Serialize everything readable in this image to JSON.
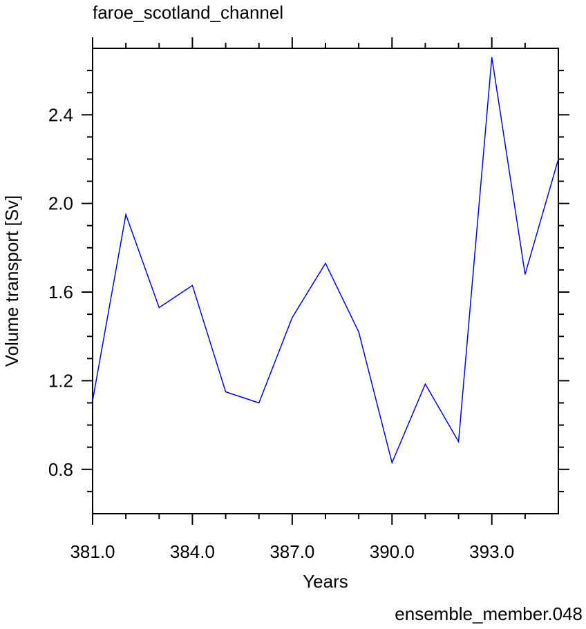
{
  "chart_data": {
    "type": "line",
    "title": "faroe_scotland_channel",
    "x_label": "Years",
    "y_label": "Volume transport [Sv]",
    "annotation": "ensemble_member.048",
    "x": [
      381,
      382,
      383,
      384,
      385,
      386,
      387,
      388,
      389,
      390,
      391,
      392,
      393,
      394,
      395
    ],
    "series": [
      {
        "name": "faroe_scotland_channel",
        "color": "#0000ff",
        "values": [
          1.11,
          1.95,
          1.53,
          1.63,
          1.15,
          1.1,
          1.485,
          1.73,
          1.42,
          0.83,
          1.185,
          0.925,
          2.66,
          1.68,
          2.2
        ]
      }
    ],
    "xlim": [
      381,
      395
    ],
    "ylim": [
      0.6,
      2.7
    ],
    "xticks": [
      {
        "value": 381,
        "label": "381.0"
      },
      {
        "value": 384,
        "label": "384.0"
      },
      {
        "value": 387,
        "label": "387.0"
      },
      {
        "value": 390,
        "label": "390.0"
      },
      {
        "value": 393,
        "label": "393.0"
      }
    ],
    "yticks": [
      0.8,
      1.2,
      1.6,
      {
        "value": 2.0,
        "label": "2.0"
      },
      2.4
    ],
    "xminorticks": [
      382,
      383,
      385,
      386,
      388,
      389,
      391,
      392,
      394
    ],
    "yminorticks": [
      0.7,
      0.9,
      1.0,
      1.1,
      1.3,
      1.4,
      1.5,
      1.7,
      1.8,
      1.9,
      2.1,
      2.2,
      2.3,
      2.5,
      2.6
    ],
    "annotation_color": "#0000ff"
  }
}
